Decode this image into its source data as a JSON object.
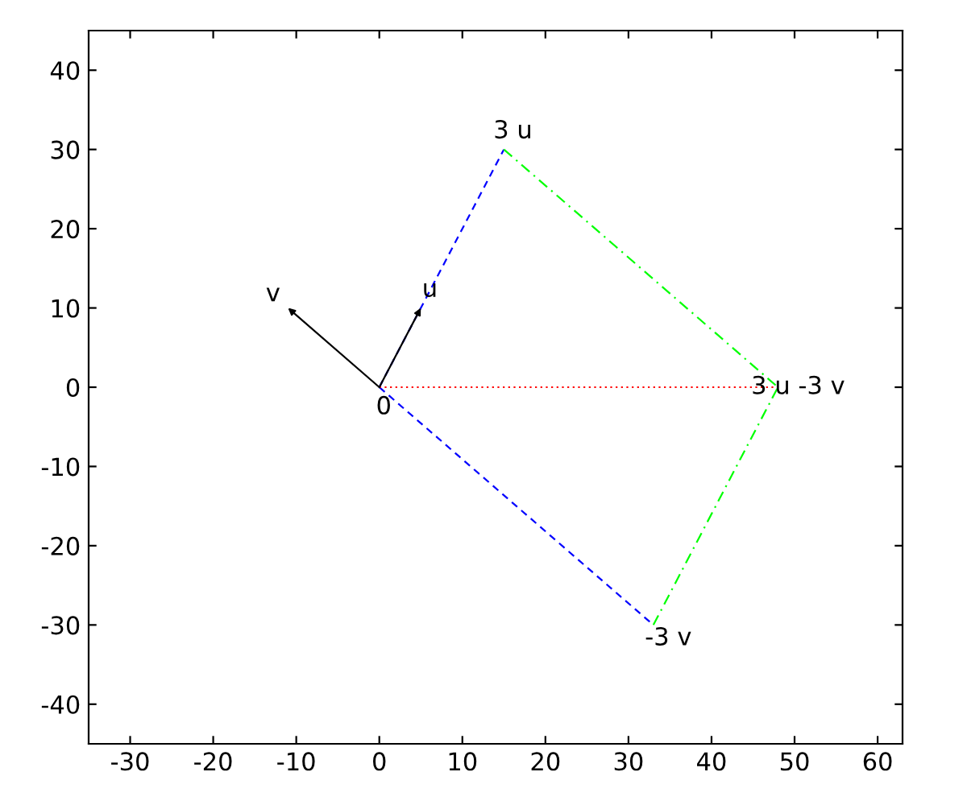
{
  "chart_data": {
    "type": "line",
    "xlim": [
      -35,
      63
    ],
    "ylim": [
      -45,
      45
    ],
    "xticks": [
      -30,
      -20,
      -10,
      0,
      10,
      20,
      30,
      40,
      50,
      60
    ],
    "yticks": [
      -40,
      -30,
      -20,
      -10,
      0,
      10,
      20,
      30,
      40
    ],
    "grid": false,
    "legend": false,
    "marker": "none",
    "series": [
      {
        "color": "#000000",
        "line_style": "solid",
        "x": [
          0,
          5
        ],
        "values": [
          0,
          10
        ]
      },
      {
        "color": "#000000",
        "line_style": "solid",
        "x": [
          0,
          -11
        ],
        "values": [
          0,
          10
        ]
      },
      {
        "color": "#0000ff",
        "line_style": "dashed",
        "x": [
          0,
          15
        ],
        "values": [
          0,
          30
        ]
      },
      {
        "color": "#0000ff",
        "line_style": "dashed",
        "x": [
          0,
          33
        ],
        "values": [
          0,
          -30
        ]
      },
      {
        "color": "#00ff00",
        "line_style": "dashdot",
        "x": [
          15,
          48
        ],
        "values": [
          30,
          0
        ]
      },
      {
        "color": "#00ff00",
        "line_style": "dashdot",
        "x": [
          33,
          48
        ],
        "values": [
          -30,
          0
        ]
      },
      {
        "color": "#ff0000",
        "line_style": "dotted",
        "x": [
          0,
          48
        ],
        "values": [
          0,
          0
        ]
      }
    ],
    "annotations": [
      {
        "text": "3 u",
        "x": 15,
        "y": 30
      },
      {
        "text": "u",
        "x": 5,
        "y": 10
      },
      {
        "text": "v",
        "x": -11,
        "y": 10
      },
      {
        "text": "0",
        "x": 0,
        "y": 0
      },
      {
        "text": "3 u -3 v",
        "x": 48,
        "y": 0
      },
      {
        "text": "-3 v",
        "x": 33,
        "y": -30
      }
    ]
  }
}
